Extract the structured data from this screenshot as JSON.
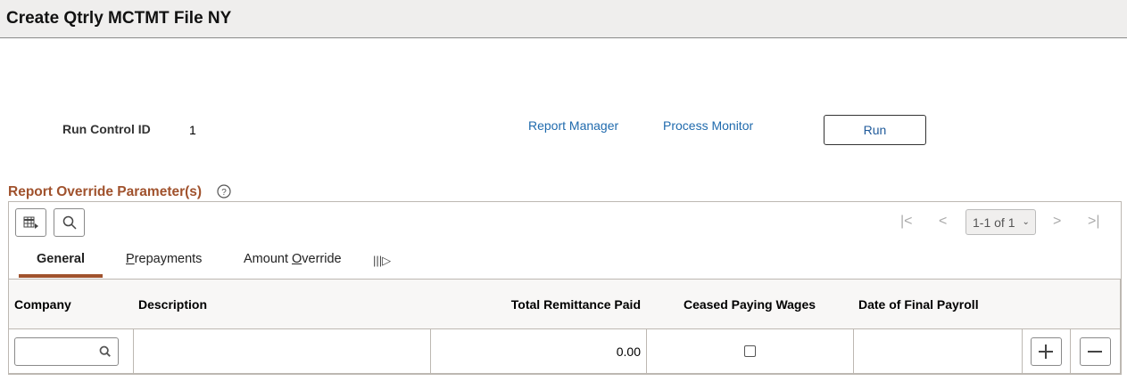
{
  "header": {
    "title": "Create Qtrly MCTMT File NY"
  },
  "run_control": {
    "label": "Run Control ID",
    "value": "1"
  },
  "links": {
    "report_manager": "Report Manager",
    "process_monitor": "Process Monitor"
  },
  "run_button": "Run",
  "section": {
    "title": "Report Override Parameter(s)",
    "help_icon": "help-circle-icon"
  },
  "pagination": {
    "range": "1-1 of 1"
  },
  "tabs": [
    {
      "label": "General",
      "active": true
    },
    {
      "label": "Prepayments",
      "accesskey": "P"
    },
    {
      "label": "Amount Override",
      "accesskey": "O"
    }
  ],
  "table": {
    "columns": [
      "Company",
      "Description",
      "Total Remittance Paid",
      "Ceased Paying Wages",
      "Date of Final Payroll"
    ],
    "rows": [
      {
        "company": "",
        "description": "",
        "total_remittance_paid": "0.00",
        "ceased_paying_wages": false,
        "date_of_final_payroll": ""
      }
    ]
  },
  "colors": {
    "accent": "#a0522d",
    "link": "#1f6aad"
  }
}
